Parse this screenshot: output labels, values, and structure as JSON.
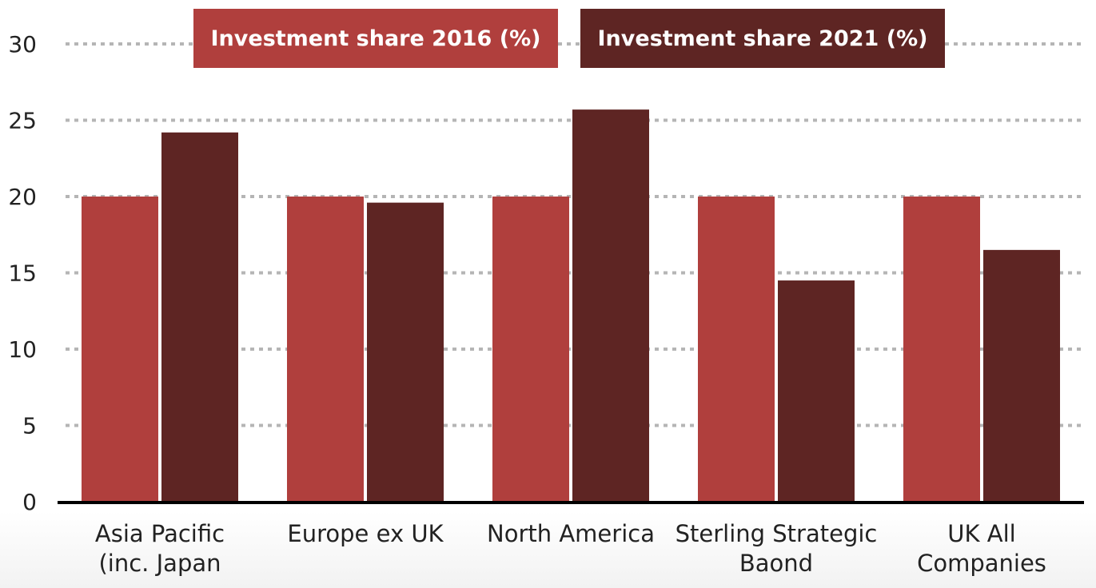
{
  "chart_data": {
    "type": "bar",
    "categories": [
      [
        "Asia Pacific",
        "(inc. Japan"
      ],
      [
        "Europe ex UK"
      ],
      [
        "North America"
      ],
      [
        "Sterling Strategic",
        "Baond"
      ],
      [
        "UK All",
        "Companies"
      ]
    ],
    "series": [
      {
        "name": "Investment share 2016 (%)",
        "color": "#b03f3d",
        "values": [
          20,
          20,
          20,
          20,
          20
        ]
      },
      {
        "name": "Investment share 2021 (%)",
        "color": "#5e2523",
        "values": [
          24.2,
          19.6,
          25.7,
          14.5,
          16.5
        ]
      }
    ],
    "ylim": [
      0,
      30
    ],
    "yticks": [
      0,
      5,
      10,
      15,
      20,
      25,
      30
    ],
    "grid": true,
    "legend_position": "top-center",
    "title": "",
    "xlabel": "",
    "ylabel": ""
  }
}
